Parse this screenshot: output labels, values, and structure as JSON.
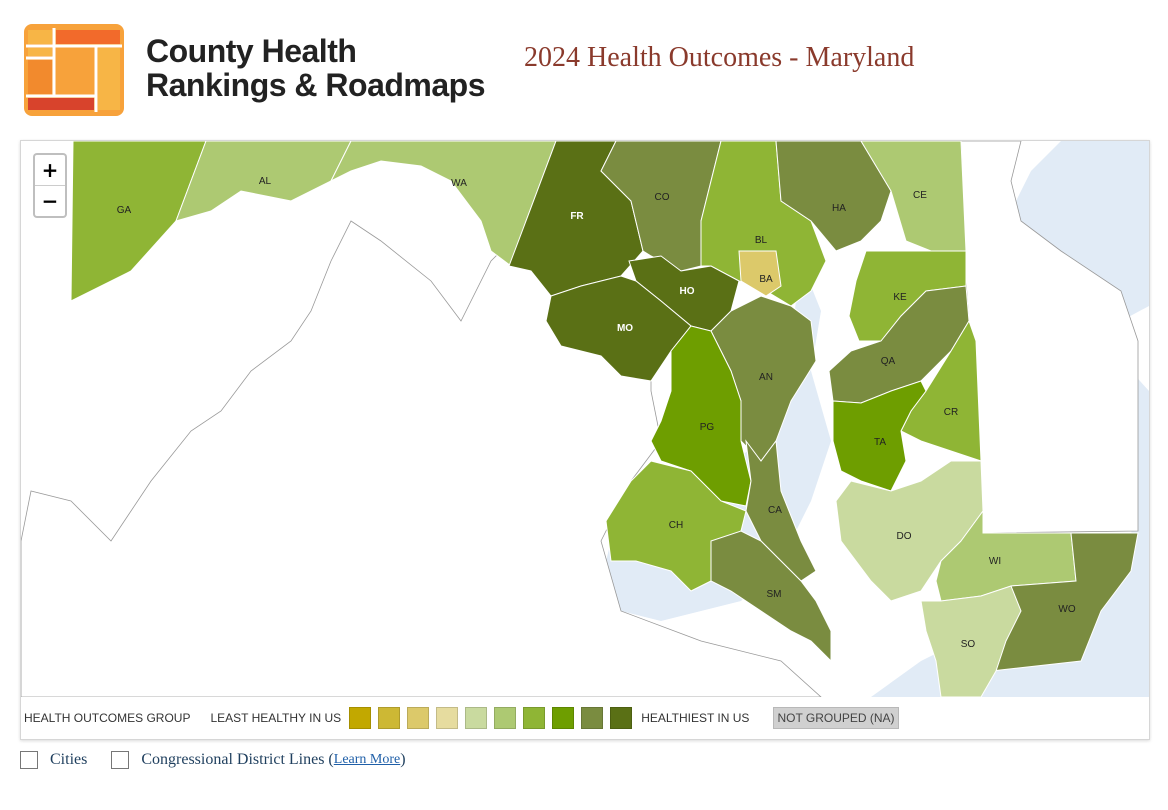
{
  "header": {
    "logo_line1": "County Health",
    "logo_line2": "Rankings & Roadmaps",
    "title": "2024 Health Outcomes - Maryland"
  },
  "zoom": {
    "in": "+",
    "out": "−"
  },
  "counties": [
    {
      "abbr": "GA",
      "group": 7
    },
    {
      "abbr": "AL",
      "group": 6
    },
    {
      "abbr": "WA",
      "group": 6
    },
    {
      "abbr": "FR",
      "group": 10
    },
    {
      "abbr": "CO",
      "group": 9
    },
    {
      "abbr": "BL",
      "group": 7
    },
    {
      "abbr": "HA",
      "group": 9
    },
    {
      "abbr": "CE",
      "group": 6
    },
    {
      "abbr": "BA",
      "group": 3
    },
    {
      "abbr": "HO",
      "group": 10
    },
    {
      "abbr": "MO",
      "group": 10
    },
    {
      "abbr": "KE",
      "group": 7
    },
    {
      "abbr": "QA",
      "group": 9
    },
    {
      "abbr": "AN",
      "group": 9
    },
    {
      "abbr": "PG",
      "group": 8
    },
    {
      "abbr": "CR",
      "group": 7
    },
    {
      "abbr": "TA",
      "group": 8
    },
    {
      "abbr": "CA",
      "group": 9
    },
    {
      "abbr": "CH",
      "group": 7
    },
    {
      "abbr": "DO",
      "group": 5
    },
    {
      "abbr": "SM",
      "group": 9
    },
    {
      "abbr": "WI",
      "group": 6
    },
    {
      "abbr": "WO",
      "group": 9
    },
    {
      "abbr": "SO",
      "group": 5
    }
  ],
  "legend": {
    "title": "HEALTH OUTCOMES GROUP",
    "least": "LEAST HEALTHY IN US",
    "best": "HEALTHIEST IN US",
    "na": "NOT GROUPED (NA)",
    "colors": [
      "#c2a800",
      "#cdb834",
      "#dcc96a",
      "#e6dc9f",
      "#c9da9f",
      "#adc972",
      "#8fb535",
      "#6e9e00",
      "#7a8c40",
      "#5a7015"
    ]
  },
  "toggles": {
    "cities": "Cities",
    "districts": "Congressional District Lines (",
    "learn_more": "Learn More",
    "close_paren": ")"
  }
}
